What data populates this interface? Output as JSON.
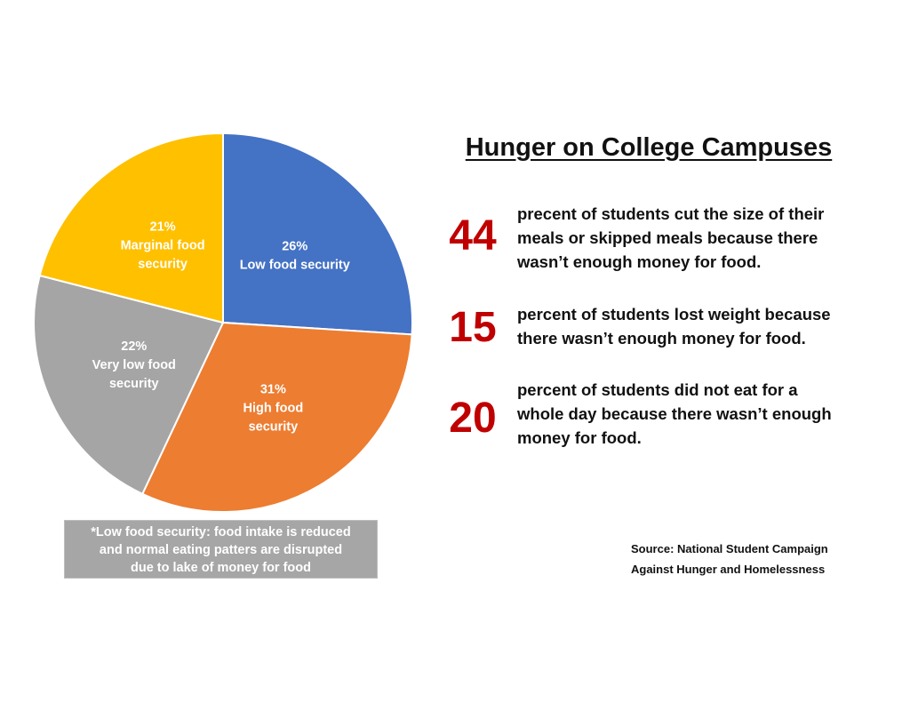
{
  "chart_data": {
    "type": "pie",
    "slices": [
      {
        "percent": 26,
        "value_label": "26%",
        "label_lines": [
          "Low food security"
        ],
        "color": "#4472c4"
      },
      {
        "percent": 31,
        "value_label": "31%",
        "label_lines": [
          "High food",
          "security"
        ],
        "color": "#ed7d31"
      },
      {
        "percent": 22,
        "value_label": "22%",
        "label_lines": [
          "Very low food",
          "security"
        ],
        "color": "#a5a5a5"
      },
      {
        "percent": 21,
        "value_label": "21%",
        "label_lines": [
          "Marginal food",
          "security"
        ],
        "color": "#ffc000"
      }
    ],
    "start_angle": "12 o'clock",
    "direction": "clockwise",
    "legend": "none"
  },
  "footnote": {
    "lines": [
      "*Low food security: food intake is reduced",
      "and normal eating patters are disrupted",
      "due to lake of money for food"
    ]
  },
  "title": "Hunger on College Campuses",
  "stats": [
    {
      "number": "44",
      "lines": [
        "precent of students cut the size of their",
        "meals or skipped meals because there",
        "wasn’t enough money for food."
      ]
    },
    {
      "number": "15",
      "lines": [
        "percent of students lost weight because",
        "there wasn’t enough money for food."
      ]
    },
    {
      "number": "20",
      "lines": [
        "percent of students did not eat for a",
        "whole day because there wasn’t enough",
        "money for food."
      ]
    }
  ],
  "source": {
    "lines": [
      "Source: National Student Campaign",
      "Against Hunger and Homelessness"
    ]
  },
  "colors": {
    "stat_number": "#c00000",
    "footnote_background": "#a6a6a6"
  }
}
